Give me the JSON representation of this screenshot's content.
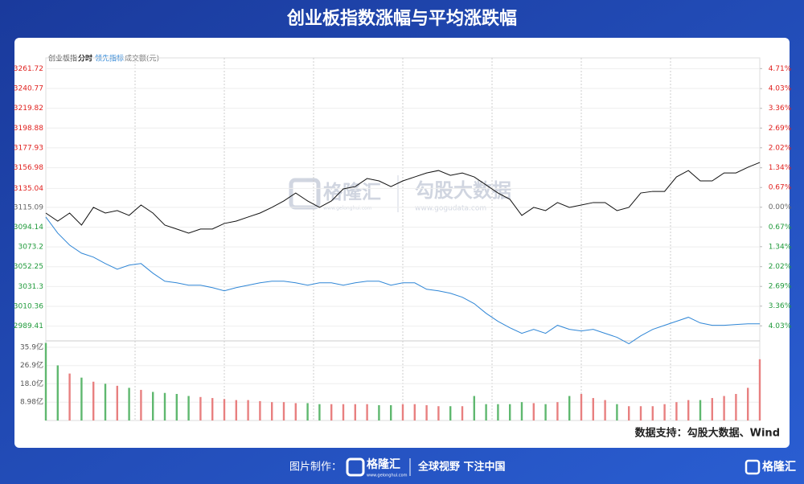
{
  "chart_data": {
    "type": "line",
    "title": "创业板指数涨幅与平均涨跌幅",
    "tabs": [
      "创业板指",
      "分时",
      "领先指标",
      "成交额(元)"
    ],
    "ylim": [
      2967,
      3268
    ],
    "yticks": [
      3261.72,
      3240.77,
      3219.82,
      3198.88,
      3177.93,
      3156.98,
      3135.04,
      3115.09,
      3094.14,
      3073.2,
      3052.25,
      3031.3,
      3010.36,
      2989.41
    ],
    "y2lim": [
      -4.76,
      4.91
    ],
    "y2ticks": [
      {
        "value": 4.71,
        "label": "4.71%"
      },
      {
        "value": 4.03,
        "label": "4.03%"
      },
      {
        "value": 3.36,
        "label": "3.36%"
      },
      {
        "value": 2.69,
        "label": "2.69%"
      },
      {
        "value": 2.02,
        "label": "2.02%"
      },
      {
        "value": 1.34,
        "label": "1.34%"
      },
      {
        "value": 0.67,
        "label": "0.67%"
      },
      {
        "value": 0,
        "label": "0.00%"
      },
      {
        "value": -0.67,
        "label": "0.67%"
      },
      {
        "value": -1.34,
        "label": "1.34%"
      },
      {
        "value": -2.02,
        "label": "2.02%"
      },
      {
        "value": -2.69,
        "label": "2.69%"
      },
      {
        "value": -3.36,
        "label": "3.36%"
      },
      {
        "value": -4.03,
        "label": "4.03%"
      }
    ],
    "series": [
      {
        "color": "#111111",
        "values": [
          3109.0,
          3100.5,
          3109.0,
          3096.3,
          3115.0,
          3109.0,
          3111.6,
          3106.5,
          3117.5,
          3109.0,
          3096.3,
          3092.1,
          3087.8,
          3092.1,
          3092.1,
          3098.0,
          3100.5,
          3104.8,
          3109.0,
          3115.0,
          3121.8,
          3130.2,
          3121.8,
          3115.0,
          3121.8,
          3134.5,
          3137.0,
          3145.5,
          3143.0,
          3137.0,
          3143.0,
          3147.2,
          3151.4,
          3154.0,
          3148.9,
          3151.4,
          3147.2,
          3138.7,
          3130.2,
          3123.5,
          3106.5,
          3115.0,
          3111.6,
          3120.1,
          3115.0,
          3117.5,
          3120.1,
          3120.1,
          3111.6,
          3115.0,
          3130.2,
          3131.9,
          3131.9,
          3147.2,
          3154.0,
          3143.0,
          3143.0,
          3151.4,
          3151.4,
          3157.4,
          3162.5
        ]
      },
      {
        "color": "#2f86d6",
        "values": [
          3104.8,
          3087.8,
          3075.1,
          3066.6,
          3062.4,
          3055.6,
          3049.6,
          3053.9,
          3055.6,
          3045.4,
          3036.9,
          3035.2,
          3032.7,
          3032.7,
          3030.1,
          3026.7,
          3030.1,
          3032.7,
          3035.2,
          3036.9,
          3036.9,
          3035.2,
          3032.7,
          3035.2,
          3035.2,
          3032.7,
          3035.2,
          3036.9,
          3036.9,
          3032.7,
          3035.2,
          3035.2,
          3028.4,
          3026.7,
          3024.2,
          3020.0,
          3013.2,
          3003.0,
          2994.5,
          2987.7,
          2981.8,
          2986.0,
          2981.8,
          2990.3,
          2986.0,
          2984.3,
          2986.0,
          2981.8,
          2977.6,
          2970.8,
          2979.2,
          2986.0,
          2990.3,
          2994.5,
          2998.8,
          2992.8,
          2990.3,
          2990.3,
          2991.1,
          2991.9,
          2991.9
        ]
      }
    ],
    "volume": {
      "ylim": [
        0,
        38.6
      ],
      "yticks": [
        {
          "value": 35.9,
          "label": "35.9亿"
        },
        {
          "value": 26.9,
          "label": "26.9亿"
        },
        {
          "value": 18.0,
          "label": "18.0亿"
        },
        {
          "value": 8.98,
          "label": "8.98亿"
        }
      ],
      "values": [
        38,
        27,
        23,
        21,
        19,
        18,
        17,
        16,
        15,
        14,
        13.5,
        13,
        12,
        11.5,
        11,
        10.5,
        10,
        10,
        9.5,
        9,
        9,
        8.5,
        8.5,
        8,
        8,
        8,
        8,
        8,
        7.5,
        7.5,
        8,
        8,
        7.5,
        7,
        7,
        7,
        12,
        8,
        8,
        8,
        9,
        8.5,
        8,
        9,
        12,
        13,
        11,
        10,
        8,
        7,
        7,
        7,
        8,
        9,
        10,
        10,
        11,
        12,
        13,
        16,
        30
      ]
    },
    "watermark": [
      "格隆汇",
      "www.gelonghui.com",
      "勾股大数据",
      "www.gogudata.com"
    ]
  },
  "source": "数据支持：勾股大数据、Wind",
  "footer": {
    "made_by": "图片制作：",
    "logo": "格隆汇",
    "logo_url": "www.gelonghui.com",
    "slogan": "全球视野 下注中国",
    "brand": "格隆汇"
  }
}
